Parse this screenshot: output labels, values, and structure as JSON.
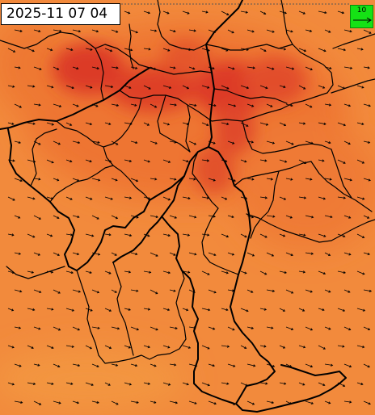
{
  "map": {
    "timestamp": "2025-11 07 04",
    "legend": {
      "wind_reference_value": "10",
      "icon": "wind-arrow-icon",
      "color": "#15e215"
    },
    "colors": {
      "base_field": "#f28a3c",
      "warm_field": "#ef6f2e",
      "hot_field": "#dd3a26",
      "border": "#000000",
      "arrow": "#000000",
      "frame": "#555555"
    },
    "wind_direction": "westerly",
    "layers": [
      "temperature-field",
      "wind-arrows",
      "administrative-boundaries"
    ]
  }
}
